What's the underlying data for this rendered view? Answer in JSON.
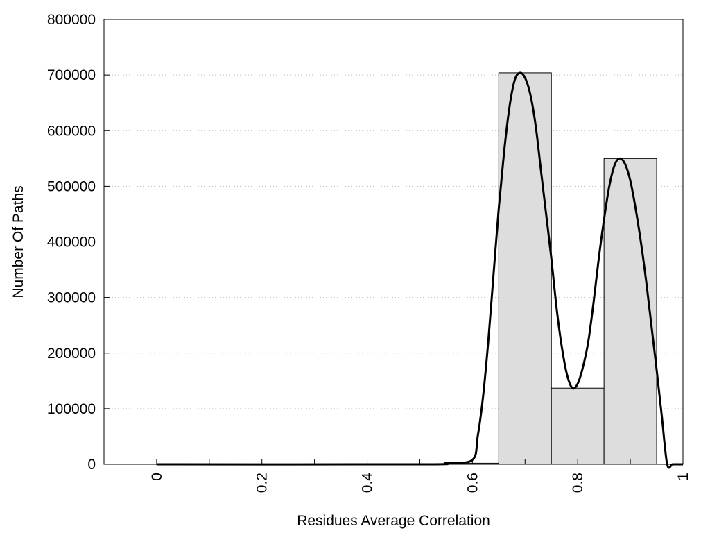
{
  "chart_data": {
    "type": "bar",
    "xlabel": "Residues Average Correlation",
    "ylabel": "Number Of Paths",
    "xlim": [
      -0.1,
      1.0
    ],
    "ylim": [
      0,
      800000
    ],
    "grid": {
      "horizontal": true,
      "style": "dotted"
    },
    "x_ticks": [
      0,
      0.2,
      0.4,
      0.6,
      0.8,
      1
    ],
    "x_tick_labels": [
      "0",
      "0.2",
      "0.4",
      "0.6",
      "0.8",
      "1"
    ],
    "x_minor_ticks": [
      0.1,
      0.3,
      0.5,
      0.7,
      0.9
    ],
    "y_ticks": [
      0,
      100000,
      200000,
      300000,
      400000,
      500000,
      600000,
      700000,
      800000
    ],
    "y_tick_labels": [
      "0",
      "100000",
      "200000",
      "300000",
      "400000",
      "500000",
      "600000",
      "700000",
      "800000"
    ],
    "bars": [
      {
        "x0": 0.0,
        "x1": 0.05,
        "value": 0
      },
      {
        "x0": 0.05,
        "x1": 0.15,
        "value": 0
      },
      {
        "x0": 0.15,
        "x1": 0.25,
        "value": 0
      },
      {
        "x0": 0.25,
        "x1": 0.35,
        "value": 0
      },
      {
        "x0": 0.35,
        "x1": 0.45,
        "value": 0
      },
      {
        "x0": 0.45,
        "x1": 0.55,
        "value": 0
      },
      {
        "x0": 0.55,
        "x1": 0.65,
        "value": 2000
      },
      {
        "x0": 0.65,
        "x1": 0.75,
        "value": 704000
      },
      {
        "x0": 0.75,
        "x1": 0.85,
        "value": 137000
      },
      {
        "x0": 0.85,
        "x1": 0.95,
        "value": 550000
      }
    ],
    "bar_fill": "#dddddd",
    "curve": {
      "x": [
        0.0,
        0.5,
        0.55,
        0.6,
        0.61,
        0.62,
        0.63,
        0.64,
        0.65,
        0.66,
        0.67,
        0.68,
        0.69,
        0.7,
        0.71,
        0.72,
        0.73,
        0.74,
        0.75,
        0.76,
        0.77,
        0.78,
        0.79,
        0.8,
        0.81,
        0.82,
        0.83,
        0.84,
        0.85,
        0.86,
        0.87,
        0.88,
        0.89,
        0.9,
        0.91,
        0.92,
        0.93,
        0.94,
        0.95,
        0.96,
        0.97,
        0.98,
        0.99,
        1.0
      ],
      "y": [
        0,
        0,
        2000,
        8000,
        50000,
        120000,
        220000,
        340000,
        460000,
        560000,
        640000,
        690000,
        704000,
        695000,
        665000,
        610000,
        530000,
        450000,
        370000,
        280000,
        210000,
        160000,
        137000,
        145000,
        175000,
        220000,
        290000,
        370000,
        440000,
        500000,
        538000,
        550000,
        540000,
        510000,
        460000,
        400000,
        330000,
        250000,
        170000,
        85000,
        0,
        0,
        0,
        0
      ]
    }
  }
}
